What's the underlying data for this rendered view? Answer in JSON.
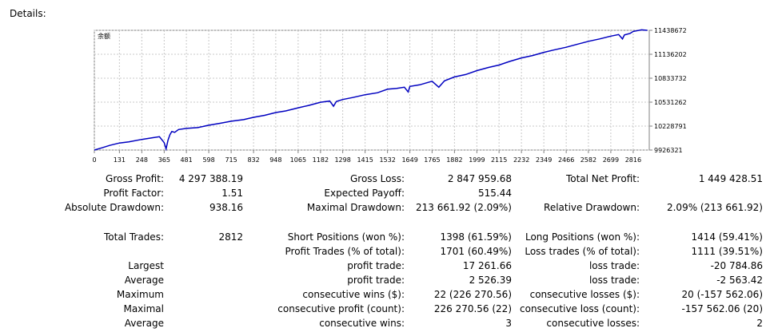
{
  "section_title": "Details:",
  "chart_data": {
    "type": "line",
    "title": "余额",
    "x_ticks": [
      0,
      131,
      248,
      365,
      481,
      598,
      715,
      832,
      948,
      1065,
      1182,
      1298,
      1415,
      1532,
      1649,
      1765,
      1882,
      1999,
      2115,
      2232,
      2349,
      2466,
      2582,
      2699,
      2816
    ],
    "y_ticks": [
      "9926321",
      "10228791",
      "10531262",
      "10833732",
      "11136202",
      "11438672"
    ],
    "xlim": [
      0,
      2900
    ],
    "ylim": [
      9926321,
      11438672
    ],
    "grid": true,
    "line_color": "#0000c0",
    "series": [
      {
        "x": [
          0,
          40,
          80,
          131,
          180,
          248,
          300,
          340,
          365,
          375,
          385,
          395,
          405,
          420,
          440,
          481,
          540,
          598,
          660,
          715,
          780,
          832,
          890,
          948,
          1000,
          1065,
          1120,
          1182,
          1230,
          1250,
          1265,
          1298,
          1350,
          1415,
          1480,
          1532,
          1580,
          1620,
          1640,
          1649,
          1700,
          1765,
          1800,
          1830,
          1882,
          1940,
          1999,
          2060,
          2115,
          2170,
          2232,
          2290,
          2349,
          2400,
          2466,
          2520,
          2582,
          2640,
          2699,
          2740,
          2760,
          2770,
          2800,
          2816,
          2860,
          2890
        ],
        "y": [
          9926321,
          9955000,
          9985000,
          10015000,
          10030000,
          10060000,
          10080000,
          10095000,
          10020000,
          9940000,
          10050000,
          10120000,
          10160000,
          10150000,
          10185000,
          10200000,
          10210000,
          10240000,
          10265000,
          10290000,
          10310000,
          10340000,
          10365000,
          10400000,
          10420000,
          10460000,
          10490000,
          10530000,
          10545000,
          10480000,
          10540000,
          10565000,
          10590000,
          10625000,
          10650000,
          10695000,
          10705000,
          10720000,
          10660000,
          10730000,
          10750000,
          10795000,
          10720000,
          10800000,
          10850000,
          10880000,
          10930000,
          10970000,
          11000000,
          11045000,
          11090000,
          11120000,
          11160000,
          11190000,
          11225000,
          11260000,
          11300000,
          11330000,
          11365000,
          11385000,
          11330000,
          11380000,
          11400000,
          11425000,
          11445000,
          11438672
        ]
      }
    ]
  },
  "stats": {
    "row1": {
      "a_label": "Gross Profit:",
      "a_value": "4 297 388.19",
      "b_label": "Gross Loss:",
      "b_value": "2 847 959.68",
      "c_label": "Total Net Profit:",
      "c_value": "1 449 428.51"
    },
    "row2": {
      "a_label": "Profit Factor:",
      "a_value": "1.51",
      "b_label": "Expected Payoff:",
      "b_value": "515.44"
    },
    "row3": {
      "a_label": "Absolute Drawdown:",
      "a_value": "938.16",
      "b_label": "Maximal Drawdown:",
      "b_value": "213 661.92 (2.09%)",
      "c_label": "Relative Drawdown:",
      "c_value": "2.09% (213 661.92)"
    },
    "row4": {
      "a_label": "Total Trades:",
      "a_value": "2812",
      "b_label": "Short Positions (won %):",
      "b_value": "1398 (61.59%)",
      "c_label": "Long Positions (won %):",
      "c_value": "1414 (59.41%)"
    },
    "row5": {
      "b_label": "Profit Trades (% of total):",
      "b_value": "1701 (60.49%)",
      "c_label": "Loss trades (% of total):",
      "c_value": "1111 (39.51%)"
    },
    "row6": {
      "a_label": "Largest",
      "b_label": "profit trade:",
      "b_value": "17 261.66",
      "c_label": "loss trade:",
      "c_value": "-20 784.86"
    },
    "row7": {
      "a_label": "Average",
      "b_label": "profit trade:",
      "b_value": "2 526.39",
      "c_label": "loss trade:",
      "c_value": "-2 563.42"
    },
    "row8": {
      "a_label": "Maximum",
      "b_label": "consecutive wins ($):",
      "b_value": "22 (226 270.56)",
      "c_label": "consecutive losses ($):",
      "c_value": "20 (-157 562.06)"
    },
    "row9": {
      "a_label": "Maximal",
      "b_label": "consecutive profit (count):",
      "b_value": "226 270.56 (22)",
      "c_label": "consecutive loss (count):",
      "c_value": "-157 562.06 (20)"
    },
    "row10": {
      "a_label": "Average",
      "b_label": "consecutive wins:",
      "b_value": "3",
      "c_label": "consecutive losses:",
      "c_value": "2"
    }
  }
}
